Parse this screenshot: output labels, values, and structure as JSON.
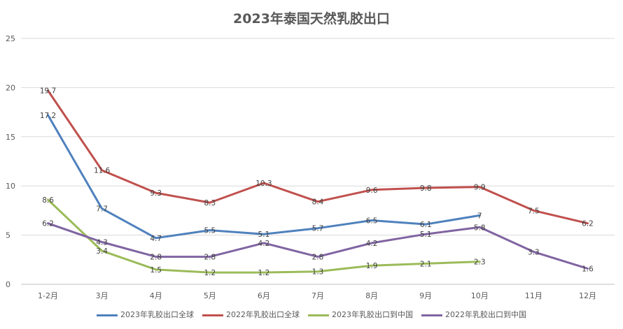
{
  "chart_data": {
    "type": "line",
    "title": "2023年泰国天然乳胶出口",
    "xlabel": "",
    "ylabel": "",
    "ylim": [
      0,
      25
    ],
    "yticks": [
      0,
      5,
      10,
      15,
      20,
      25
    ],
    "grid": true,
    "legend_position": "bottom",
    "categories": [
      "1-2月",
      "3月",
      "4月",
      "5月",
      "6月",
      "7月",
      "8月",
      "9月",
      "10月",
      "11月",
      "12月"
    ],
    "series": [
      {
        "name": "2023年乳胶出口全球",
        "color": "#4F81BD",
        "values": [
          17.2,
          7.7,
          4.7,
          5.5,
          5.1,
          5.7,
          6.5,
          6.1,
          7,
          null,
          null
        ]
      },
      {
        "name": "2022年乳胶出口全球",
        "color": "#C0504D",
        "values": [
          19.7,
          11.6,
          9.3,
          8.3,
          10.3,
          8.4,
          9.6,
          9.8,
          9.9,
          7.5,
          6.2
        ]
      },
      {
        "name": "2023年乳胶出口到中国",
        "color": "#9BBB59",
        "values": [
          8.6,
          3.4,
          1.5,
          1.2,
          1.2,
          1.3,
          1.9,
          2.1,
          2.3,
          null,
          null
        ]
      },
      {
        "name": "2022年乳胶出口到中国",
        "color": "#8064A2",
        "values": [
          6.2,
          4.3,
          2.8,
          2.8,
          4.2,
          2.8,
          4.2,
          5.1,
          5.8,
          3.3,
          1.6
        ]
      }
    ]
  }
}
